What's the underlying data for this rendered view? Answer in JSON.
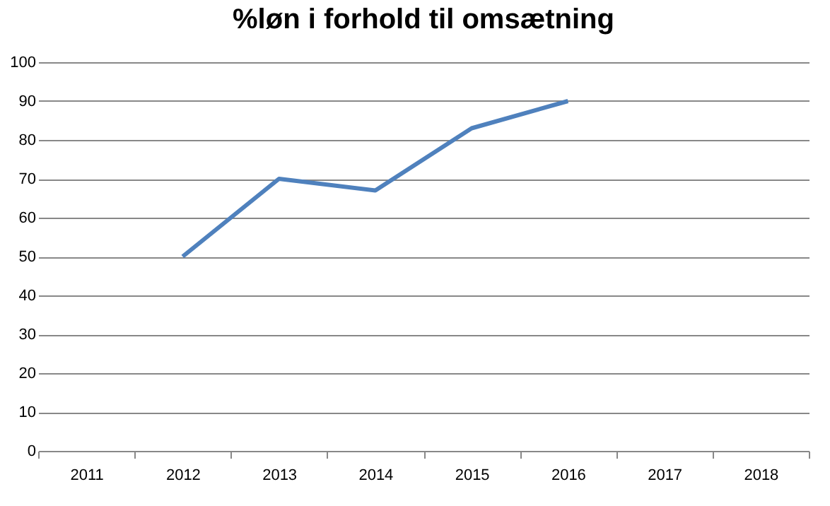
{
  "chart_data": {
    "type": "line",
    "title": "%løn i forhold til omsætning",
    "categories": [
      "2011",
      "2012",
      "2013",
      "2014",
      "2015",
      "2016",
      "2017",
      "2018"
    ],
    "series": [
      {
        "color": "#4f81bd",
        "values": [
          null,
          50,
          70,
          67,
          83,
          90,
          null,
          null
        ]
      }
    ],
    "ylim": [
      0,
      100
    ],
    "yticks": [
      0,
      10,
      20,
      30,
      40,
      50,
      60,
      70,
      80,
      90,
      100
    ],
    "grid": "y",
    "marker": "none",
    "line_style": "solid"
  }
}
